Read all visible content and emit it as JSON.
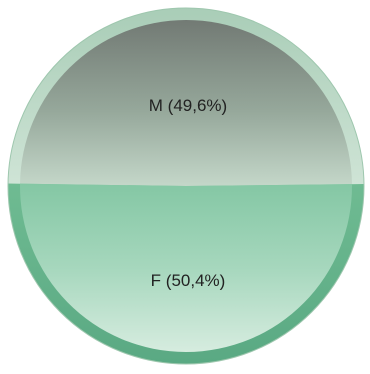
{
  "chart_data": {
    "type": "pie",
    "slices": [
      {
        "label": "M",
        "percent_text": "49,6%",
        "value": 49.6,
        "color": "#8fb09a"
      },
      {
        "label": "F",
        "percent_text": "50,4%",
        "value": 50.4,
        "color": "#7cc2a1"
      }
    ],
    "legend": "none",
    "start": "left"
  }
}
